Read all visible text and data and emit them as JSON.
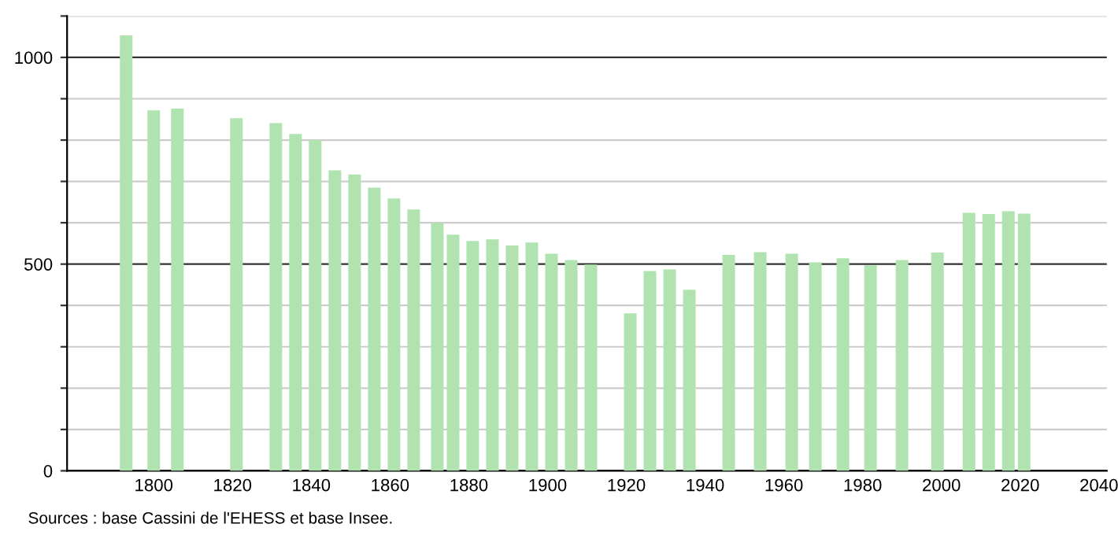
{
  "chart_data": {
    "type": "bar",
    "x": [
      1793,
      1800,
      1806,
      1821,
      1831,
      1836,
      1841,
      1846,
      1851,
      1856,
      1861,
      1866,
      1872,
      1876,
      1881,
      1886,
      1891,
      1896,
      1901,
      1906,
      1911,
      1921,
      1926,
      1931,
      1936,
      1946,
      1954,
      1962,
      1968,
      1975,
      1982,
      1990,
      1999,
      2007,
      2012,
      2017,
      2021
    ],
    "values": [
      1053,
      872,
      876,
      853,
      841,
      815,
      800,
      727,
      717,
      685,
      659,
      632,
      600,
      571,
      556,
      560,
      545,
      552,
      525,
      510,
      499,
      381,
      483,
      487,
      438,
      522,
      529,
      525,
      504,
      514,
      497,
      510,
      528,
      624,
      621,
      628,
      622
    ],
    "color": "#b0e3b0",
    "xlim": [
      1778,
      2042
    ],
    "xticks": [
      1800,
      1820,
      1840,
      1860,
      1880,
      1900,
      1920,
      1940,
      1960,
      1980,
      2000,
      2020,
      2040
    ],
    "ylim": [
      0,
      1100
    ],
    "yticks": [
      0,
      {
        "value": 100,
        "label": null
      },
      {
        "value": 200,
        "label": null
      },
      {
        "value": 300,
        "label": null
      },
      {
        "value": 400,
        "label": null
      },
      500,
      {
        "value": 600,
        "label": null
      },
      {
        "value": 700,
        "label": null
      },
      {
        "value": 800,
        "label": null
      },
      {
        "value": 900,
        "label": null
      },
      1000,
      {
        "value": 1100,
        "label": null
      }
    ],
    "grid": "y",
    "annotations": [
      "Sources : base Cassini de l'EHESS et base Insee."
    ]
  }
}
